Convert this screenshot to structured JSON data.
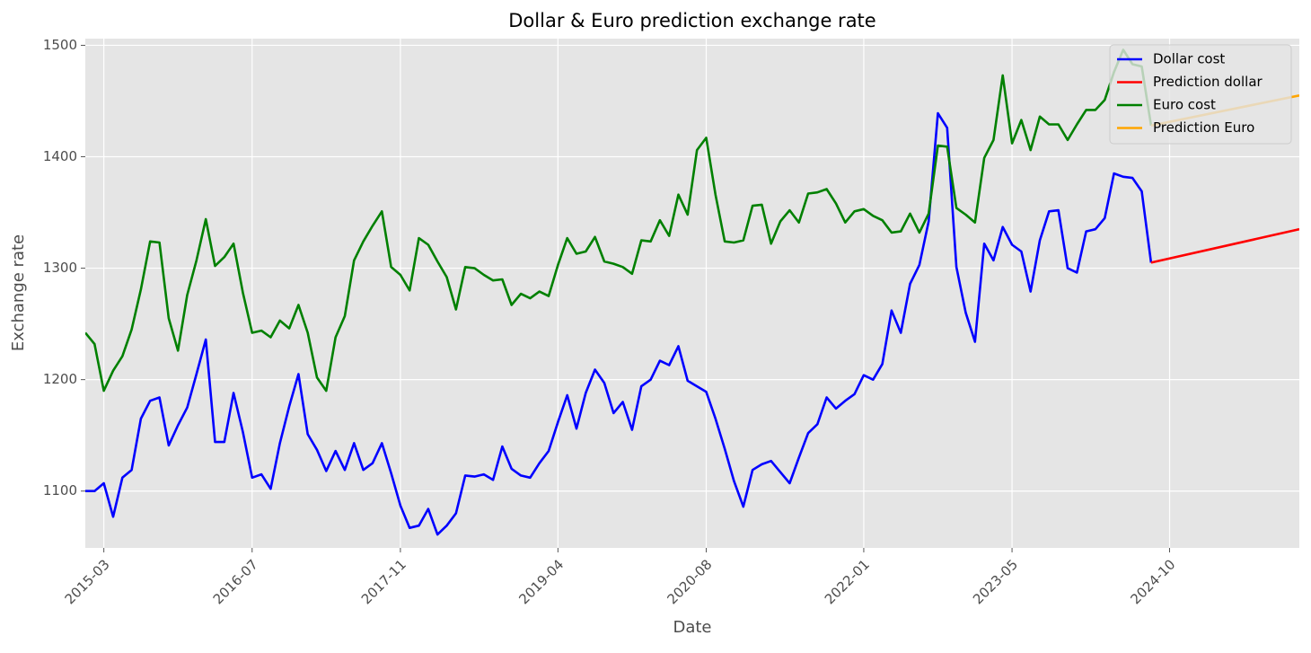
{
  "chart_data": {
    "type": "line",
    "title": "Dollar & Euro prediction exchange rate",
    "x_label": "Date",
    "y_label": "Exchange rate",
    "xlim": [
      "2015-01",
      "2025-12"
    ],
    "xticks": [
      "2015-03",
      "2016-07",
      "2017-11",
      "2019-04",
      "2020-08",
      "2022-01",
      "2023-05",
      "2024-10"
    ],
    "ylim": [
      1049,
      1506
    ],
    "yticks": [
      1100,
      1200,
      1300,
      1400,
      1500
    ],
    "grid": true,
    "legend": "upper right",
    "x": [
      "2015-01",
      "2015-02",
      "2015-03",
      "2015-04",
      "2015-05",
      "2015-06",
      "2015-07",
      "2015-08",
      "2015-09",
      "2015-10",
      "2015-11",
      "2015-12",
      "2016-01",
      "2016-02",
      "2016-03",
      "2016-04",
      "2016-05",
      "2016-06",
      "2016-07",
      "2016-08",
      "2016-09",
      "2016-10",
      "2016-11",
      "2016-12",
      "2017-01",
      "2017-02",
      "2017-03",
      "2017-04",
      "2017-05",
      "2017-06",
      "2017-07",
      "2017-08",
      "2017-09",
      "2017-10",
      "2017-11",
      "2017-12",
      "2018-01",
      "2018-02",
      "2018-03",
      "2018-04",
      "2018-05",
      "2018-06",
      "2018-07",
      "2018-08",
      "2018-09",
      "2018-10",
      "2018-11",
      "2018-12",
      "2019-01",
      "2019-02",
      "2019-03",
      "2019-04",
      "2019-05",
      "2019-06",
      "2019-07",
      "2019-08",
      "2019-09",
      "2019-10",
      "2019-11",
      "2019-12",
      "2020-01",
      "2020-02",
      "2020-03",
      "2020-04",
      "2020-05",
      "2020-06",
      "2020-07",
      "2020-08",
      "2020-09",
      "2020-10",
      "2020-11",
      "2020-12",
      "2021-01",
      "2021-02",
      "2021-03",
      "2021-04",
      "2021-05",
      "2021-06",
      "2021-07",
      "2021-08",
      "2021-09",
      "2021-10",
      "2021-11",
      "2021-12",
      "2022-01",
      "2022-02",
      "2022-03",
      "2022-04",
      "2022-05",
      "2022-06",
      "2022-07",
      "2022-08",
      "2022-09",
      "2022-10",
      "2022-11",
      "2022-12",
      "2023-01",
      "2023-02",
      "2023-03",
      "2023-04",
      "2023-05",
      "2023-06",
      "2023-07",
      "2023-08",
      "2023-09",
      "2023-10",
      "2023-11",
      "2023-12",
      "2024-01",
      "2024-02",
      "2024-03",
      "2024-04",
      "2024-05",
      "2024-06",
      "2024-07",
      "2024-08"
    ],
    "series": [
      {
        "name": "Dollar cost",
        "color": "#0000ff",
        "values": [
          1100,
          1100,
          1107,
          1077,
          1112,
          1119,
          1165,
          1181,
          1184,
          1141,
          1159,
          1175,
          1205,
          1236,
          1144,
          1144,
          1188,
          1153,
          1112,
          1115,
          1102,
          1143,
          1176,
          1205,
          1151,
          1137,
          1118,
          1136,
          1119,
          1143,
          1119,
          1125,
          1143,
          1116,
          1087,
          1067,
          1069,
          1084,
          1061,
          1069,
          1080,
          1114,
          1113,
          1115,
          1110,
          1140,
          1120,
          1114,
          1112,
          1125,
          1136,
          1162,
          1186,
          1156,
          1188,
          1209,
          1197,
          1170,
          1180,
          1155,
          1194,
          1200,
          1217,
          1213,
          1230,
          1199,
          1194,
          1189,
          1165,
          1138,
          1109,
          1086,
          1119,
          1124,
          1127,
          1117,
          1107,
          1130,
          1152,
          1160,
          1184,
          1174,
          1181,
          1187,
          1204,
          1200,
          1214,
          1262,
          1242,
          1286,
          1303,
          1342,
          1439,
          1426,
          1301,
          1260,
          1234,
          1322,
          1307,
          1337,
          1321,
          1315,
          1279,
          1325,
          1351,
          1352,
          1300,
          1296,
          1333,
          1335,
          1345,
          1385,
          1382,
          1381,
          1369,
          1305
        ]
      },
      {
        "name": "Prediction dollar",
        "color": "#ff0000",
        "x": [
          "2024-08",
          "2025-12"
        ],
        "values": [
          1305,
          1335
        ]
      },
      {
        "name": "Euro cost",
        "color": "#008000",
        "values": [
          1242,
          1232,
          1190,
          1208,
          1221,
          1245,
          1281,
          1324,
          1323,
          1255,
          1226,
          1276,
          1307,
          1344,
          1302,
          1310,
          1322,
          1278,
          1242,
          1244,
          1238,
          1253,
          1246,
          1267,
          1242,
          1202,
          1190,
          1238,
          1257,
          1307,
          1324,
          1338,
          1351,
          1301,
          1294,
          1280,
          1327,
          1321,
          1306,
          1292,
          1263,
          1301,
          1300,
          1294,
          1289,
          1290,
          1267,
          1277,
          1273,
          1279,
          1275,
          1303,
          1327,
          1313,
          1315,
          1328,
          1306,
          1304,
          1301,
          1295,
          1325,
          1324,
          1343,
          1329,
          1366,
          1348,
          1406,
          1417,
          1366,
          1324,
          1323,
          1325,
          1356,
          1357,
          1322,
          1342,
          1352,
          1341,
          1367,
          1368,
          1371,
          1358,
          1341,
          1351,
          1353,
          1347,
          1343,
          1332,
          1333,
          1349,
          1332,
          1349,
          1410,
          1409,
          1354,
          1348,
          1341,
          1399,
          1415,
          1473,
          1412,
          1433,
          1406,
          1436,
          1429,
          1429,
          1415,
          1429,
          1442,
          1442,
          1451,
          1476,
          1496,
          1483,
          1481,
          1428
        ]
      },
      {
        "name": "Prediction Euro",
        "color": "#ffa500",
        "x": [
          "2024-08",
          "2025-12"
        ],
        "values": [
          1428,
          1455
        ]
      }
    ]
  }
}
